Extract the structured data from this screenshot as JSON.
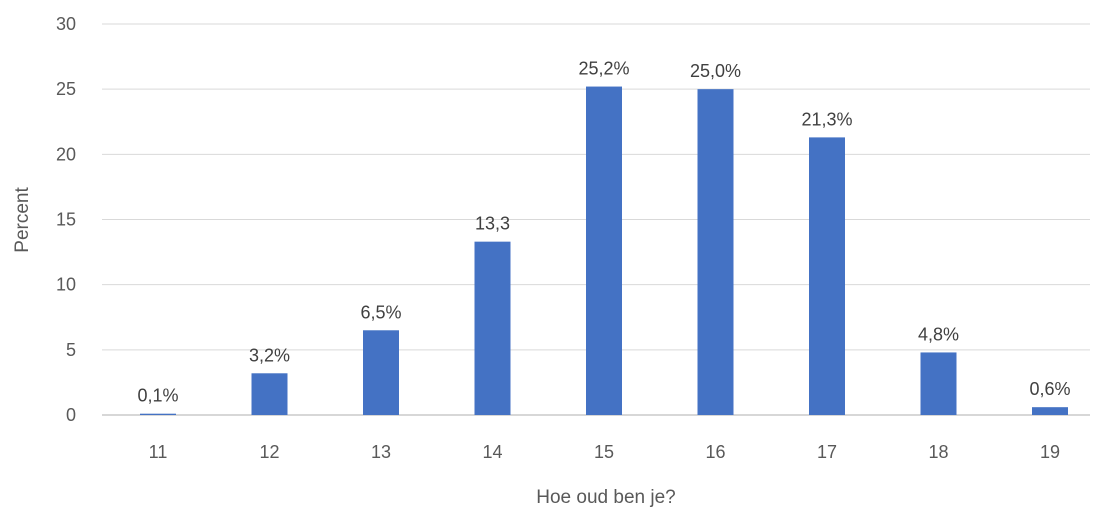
{
  "chart_data": {
    "type": "bar",
    "title": "",
    "xlabel": "Hoe oud ben je?",
    "ylabel": "Percent",
    "ylim": [
      0,
      30
    ],
    "yticks": [
      "0",
      "5",
      "10",
      "15",
      "20",
      "25",
      "30"
    ],
    "categories": [
      "11",
      "12",
      "13",
      "14",
      "15",
      "16",
      "17",
      "18",
      "19"
    ],
    "values": [
      0.1,
      3.2,
      6.5,
      13.3,
      25.2,
      25.0,
      21.3,
      4.8,
      0.6
    ],
    "data_labels": [
      "0,1%",
      "3,2%",
      "6,5%",
      "13,3",
      "25,2%",
      "25,0%",
      "21,3%",
      "4,8%",
      "0,6%"
    ],
    "grid": true,
    "legend": "none",
    "bar_color": "#4472c4"
  }
}
